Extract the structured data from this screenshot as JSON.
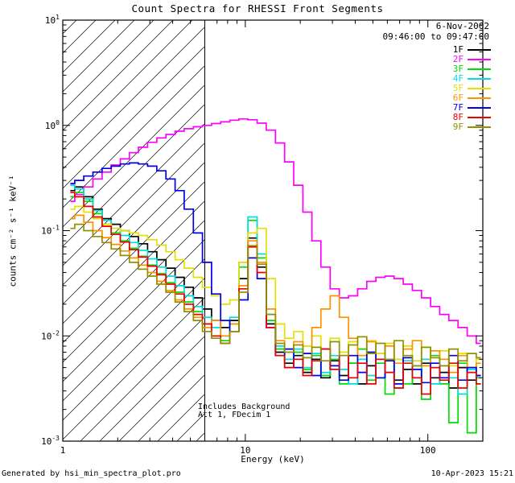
{
  "header": {
    "date": "6-Nov-2002",
    "time_range": "09:46:00 to 09:47:00"
  },
  "annotations": {
    "line1": "Includes Background",
    "line2": "Att 1, FDecim 1"
  },
  "footer": {
    "left": "Generated by hsi_min_spectra_plot.pro",
    "right": "10-Apr-2023 15:21"
  },
  "chart_data": {
    "type": "line",
    "title": "Count Spectra for RHESSI Front Segments",
    "xlabel": "Energy (keV)",
    "ylabel": "counts cm⁻² s⁻¹ keV⁻¹",
    "x_scale": "log",
    "y_scale": "log",
    "xlim": [
      1,
      200
    ],
    "ylim": [
      0.001,
      10
    ],
    "x_ticks": [
      1,
      10,
      100
    ],
    "y_tick_exponents": [
      -3,
      -2,
      -1,
      0,
      1
    ],
    "grid": false,
    "legend_position": "top-right",
    "hatched_region": {
      "x_min": 1,
      "x_max": 6
    },
    "vertical_line_x": 6,
    "x": [
      1.1,
      1.23,
      1.38,
      1.55,
      1.74,
      1.95,
      2.19,
      2.45,
      2.75,
      3.09,
      3.47,
      3.89,
      4.37,
      4.9,
      5.5,
      6.17,
      6.92,
      7.76,
      8.71,
      9.77,
      10.96,
      12.3,
      13.8,
      15.5,
      17.4,
      19.5,
      21.9,
      24.5,
      27.5,
      30.9,
      34.7,
      38.9,
      43.7,
      49.0,
      55.0,
      61.7,
      69.2,
      77.6,
      87.1,
      97.7,
      109.6,
      123.0,
      138.0,
      155.0,
      174.0,
      195.0
    ],
    "series": [
      {
        "name": "1F",
        "color": "#000000",
        "values": [
          0.24,
          0.26,
          0.21,
          0.16,
          0.13,
          0.115,
          0.1,
          0.088,
          0.075,
          0.063,
          0.053,
          0.044,
          0.036,
          0.029,
          0.023,
          0.018,
          0.014,
          0.012,
          0.014,
          0.035,
          0.085,
          0.045,
          0.013,
          0.007,
          0.0055,
          0.0065,
          0.0045,
          0.006,
          0.004,
          0.0058,
          0.0042,
          0.0055,
          0.0035,
          0.0052,
          0.004,
          0.006,
          0.0038,
          0.0048,
          0.0035,
          0.0055,
          0.004,
          0.0045,
          0.0032,
          0.005,
          0.0038,
          0.0042
        ]
      },
      {
        "name": "2F",
        "color": "#ff00ff",
        "values": [
          0.19,
          0.22,
          0.26,
          0.31,
          0.36,
          0.42,
          0.48,
          0.55,
          0.62,
          0.69,
          0.76,
          0.82,
          0.88,
          0.93,
          0.97,
          1.0,
          1.04,
          1.08,
          1.12,
          1.15,
          1.13,
          1.05,
          0.9,
          0.68,
          0.45,
          0.27,
          0.15,
          0.08,
          0.045,
          0.028,
          0.023,
          0.024,
          0.028,
          0.033,
          0.036,
          0.037,
          0.035,
          0.031,
          0.027,
          0.023,
          0.019,
          0.016,
          0.014,
          0.012,
          0.01,
          0.0085
        ]
      },
      {
        "name": "3F",
        "color": "#00dd00",
        "values": [
          0.21,
          0.23,
          0.19,
          0.145,
          0.115,
          0.095,
          0.08,
          0.068,
          0.057,
          0.047,
          0.039,
          0.032,
          0.026,
          0.021,
          0.017,
          0.013,
          0.01,
          0.009,
          0.013,
          0.045,
          0.125,
          0.055,
          0.014,
          0.0075,
          0.005,
          0.007,
          0.0048,
          0.0065,
          0.0042,
          0.006,
          0.0035,
          0.0055,
          0.0075,
          0.0038,
          0.0055,
          0.0028,
          0.006,
          0.0035,
          0.0052,
          0.0025,
          0.0065,
          0.0035,
          0.0015,
          0.0055,
          0.0012,
          0.004
        ]
      },
      {
        "name": "4F",
        "color": "#00dede",
        "values": [
          0.27,
          0.25,
          0.2,
          0.155,
          0.125,
          0.105,
          0.09,
          0.077,
          0.065,
          0.054,
          0.045,
          0.037,
          0.03,
          0.024,
          0.019,
          0.015,
          0.012,
          0.01,
          0.015,
          0.05,
          0.135,
          0.06,
          0.016,
          0.008,
          0.006,
          0.0075,
          0.005,
          0.0068,
          0.0045,
          0.0065,
          0.0048,
          0.0035,
          0.006,
          0.0042,
          0.0068,
          0.0045,
          0.0032,
          0.0058,
          0.004,
          0.006,
          0.0035,
          0.0052,
          0.004,
          0.0028,
          0.0048,
          0.0035
        ]
      },
      {
        "name": "5F",
        "color": "#e6e000",
        "values": [
          0.16,
          0.17,
          0.15,
          0.13,
          0.115,
          0.105,
          0.1,
          0.095,
          0.09,
          0.082,
          0.073,
          0.063,
          0.053,
          0.044,
          0.036,
          0.029,
          0.024,
          0.02,
          0.022,
          0.05,
          0.095,
          0.105,
          0.035,
          0.013,
          0.0095,
          0.011,
          0.008,
          0.01,
          0.0075,
          0.0095,
          0.007,
          0.0088,
          0.0065,
          0.009,
          0.0068,
          0.0085,
          0.006,
          0.008,
          0.0058,
          0.0078,
          0.0055,
          0.0072,
          0.0052,
          0.0068,
          0.005,
          0.006
        ]
      },
      {
        "name": "6F",
        "color": "#ff9100",
        "values": [
          0.13,
          0.14,
          0.12,
          0.1,
          0.086,
          0.074,
          0.064,
          0.055,
          0.047,
          0.04,
          0.033,
          0.027,
          0.022,
          0.018,
          0.015,
          0.012,
          0.014,
          0.01,
          0.013,
          0.03,
          0.08,
          0.05,
          0.018,
          0.009,
          0.0075,
          0.0088,
          0.0068,
          0.012,
          0.018,
          0.024,
          0.015,
          0.0095,
          0.0065,
          0.0088,
          0.006,
          0.008,
          0.0055,
          0.0075,
          0.009,
          0.0052,
          0.0072,
          0.006,
          0.0045,
          0.0065,
          0.005,
          0.0055
        ]
      },
      {
        "name": "7F",
        "color": "#0000ee",
        "values": [
          0.28,
          0.3,
          0.33,
          0.36,
          0.39,
          0.41,
          0.43,
          0.44,
          0.43,
          0.41,
          0.37,
          0.31,
          0.24,
          0.16,
          0.095,
          0.05,
          0.025,
          0.014,
          0.011,
          0.022,
          0.055,
          0.035,
          0.012,
          0.0065,
          0.0075,
          0.005,
          0.0068,
          0.0042,
          0.0075,
          0.0052,
          0.0038,
          0.0065,
          0.0045,
          0.007,
          0.004,
          0.0058,
          0.0035,
          0.0062,
          0.0048,
          0.0036,
          0.0055,
          0.004,
          0.0065,
          0.0038,
          0.005,
          0.0042
        ]
      },
      {
        "name": "8F",
        "color": "#ee0000",
        "values": [
          0.23,
          0.21,
          0.17,
          0.135,
          0.11,
          0.092,
          0.078,
          0.066,
          0.056,
          0.046,
          0.038,
          0.031,
          0.025,
          0.02,
          0.016,
          0.013,
          0.01,
          0.0085,
          0.011,
          0.028,
          0.07,
          0.04,
          0.012,
          0.0065,
          0.005,
          0.006,
          0.0042,
          0.0058,
          0.0075,
          0.0048,
          0.0065,
          0.004,
          0.0055,
          0.0035,
          0.006,
          0.0045,
          0.0032,
          0.0055,
          0.004,
          0.0028,
          0.005,
          0.0038,
          0.0055,
          0.0032,
          0.0045,
          0.0035
        ]
      },
      {
        "name": "9F",
        "color": "#919100",
        "values": [
          0.105,
          0.115,
          0.1,
          0.088,
          0.077,
          0.067,
          0.058,
          0.05,
          0.043,
          0.037,
          0.031,
          0.026,
          0.021,
          0.017,
          0.014,
          0.011,
          0.0095,
          0.0085,
          0.011,
          0.026,
          0.072,
          0.048,
          0.016,
          0.0085,
          0.007,
          0.0082,
          0.0062,
          0.0078,
          0.0058,
          0.0088,
          0.0065,
          0.0082,
          0.0098,
          0.0068,
          0.0085,
          0.006,
          0.009,
          0.0065,
          0.0052,
          0.0078,
          0.0062,
          0.0052,
          0.0075,
          0.0058,
          0.0068,
          0.0062
        ]
      }
    ]
  }
}
